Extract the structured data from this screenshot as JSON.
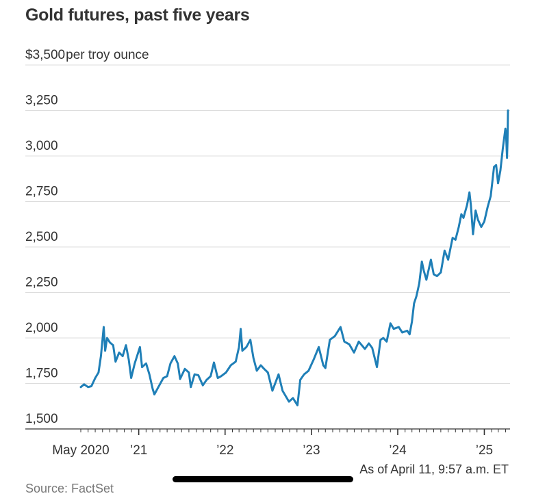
{
  "page": {
    "title": "Gold futures, past five years",
    "footnote": "As of April 11, 9:57 a.m. ET",
    "source": "Source: FactSet"
  },
  "colors": {
    "line": "#1f7fb7",
    "grid": "#dddddd",
    "axis": "#333333",
    "text": "#333333"
  },
  "chart_data": {
    "type": "line",
    "title": "Gold futures, past five years",
    "ylabel": "per troy ounce",
    "yunit_prefix": "$",
    "ylim": [
      1500,
      3500
    ],
    "yticks": [
      1500,
      1750,
      2000,
      2250,
      2500,
      2750,
      3000,
      3250,
      3500
    ],
    "ytick_labels": [
      "1,500",
      "1,750",
      "2,000",
      "2,250",
      "2,500",
      "2,750",
      "3,000",
      "3,250",
      "$3,500"
    ],
    "xlim": [
      "2020-05-01",
      "2025-04-11"
    ],
    "xticks": [
      "2020-05-01",
      "2021-01-01",
      "2022-01-01",
      "2023-01-01",
      "2024-01-01",
      "2025-01-01"
    ],
    "xtick_labels": [
      "May 2020",
      "’21",
      "’22",
      "’23",
      "’24",
      "’25"
    ],
    "grid": true,
    "series": [
      {
        "points": [
          [
            "2020-05-01",
            1730
          ],
          [
            "2020-05-15",
            1745
          ],
          [
            "2020-06-01",
            1730
          ],
          [
            "2020-06-15",
            1735
          ],
          [
            "2020-07-01",
            1780
          ],
          [
            "2020-07-15",
            1810
          ],
          [
            "2020-07-25",
            1900
          ],
          [
            "2020-08-06",
            2060
          ],
          [
            "2020-08-12",
            1930
          ],
          [
            "2020-08-20",
            2000
          ],
          [
            "2020-09-01",
            1975
          ],
          [
            "2020-09-15",
            1960
          ],
          [
            "2020-09-25",
            1870
          ],
          [
            "2020-10-10",
            1920
          ],
          [
            "2020-10-25",
            1900
          ],
          [
            "2020-11-08",
            1960
          ],
          [
            "2020-11-20",
            1880
          ],
          [
            "2020-11-30",
            1780
          ],
          [
            "2020-12-15",
            1860
          ],
          [
            "2021-01-06",
            1950
          ],
          [
            "2021-01-15",
            1840
          ],
          [
            "2021-02-01",
            1860
          ],
          [
            "2021-02-15",
            1800
          ],
          [
            "2021-03-01",
            1720
          ],
          [
            "2021-03-08",
            1690
          ],
          [
            "2021-03-25",
            1730
          ],
          [
            "2021-04-15",
            1780
          ],
          [
            "2021-05-01",
            1790
          ],
          [
            "2021-05-15",
            1860
          ],
          [
            "2021-06-01",
            1900
          ],
          [
            "2021-06-15",
            1860
          ],
          [
            "2021-06-25",
            1775
          ],
          [
            "2021-07-15",
            1830
          ],
          [
            "2021-08-01",
            1810
          ],
          [
            "2021-08-09",
            1730
          ],
          [
            "2021-08-25",
            1800
          ],
          [
            "2021-09-10",
            1795
          ],
          [
            "2021-09-29",
            1740
          ],
          [
            "2021-10-15",
            1770
          ],
          [
            "2021-11-01",
            1790
          ],
          [
            "2021-11-15",
            1865
          ],
          [
            "2021-12-01",
            1780
          ],
          [
            "2021-12-15",
            1790
          ],
          [
            "2022-01-05",
            1810
          ],
          [
            "2022-01-25",
            1850
          ],
          [
            "2022-02-15",
            1870
          ],
          [
            "2022-03-01",
            1950
          ],
          [
            "2022-03-08",
            2050
          ],
          [
            "2022-03-15",
            1930
          ],
          [
            "2022-04-01",
            1950
          ],
          [
            "2022-04-18",
            1990
          ],
          [
            "2022-05-01",
            1890
          ],
          [
            "2022-05-15",
            1820
          ],
          [
            "2022-06-01",
            1850
          ],
          [
            "2022-06-15",
            1830
          ],
          [
            "2022-07-01",
            1810
          ],
          [
            "2022-07-20",
            1710
          ],
          [
            "2022-08-15",
            1800
          ],
          [
            "2022-09-01",
            1710
          ],
          [
            "2022-09-28",
            1650
          ],
          [
            "2022-10-15",
            1670
          ],
          [
            "2022-11-03",
            1630
          ],
          [
            "2022-11-15",
            1770
          ],
          [
            "2022-12-01",
            1800
          ],
          [
            "2022-12-20",
            1820
          ],
          [
            "2023-01-10",
            1880
          ],
          [
            "2023-02-01",
            1950
          ],
          [
            "2023-02-20",
            1850
          ],
          [
            "2023-03-01",
            1835
          ],
          [
            "2023-03-20",
            1990
          ],
          [
            "2023-04-10",
            2010
          ],
          [
            "2023-05-04",
            2060
          ],
          [
            "2023-05-20",
            1980
          ],
          [
            "2023-06-10",
            1965
          ],
          [
            "2023-06-30",
            1920
          ],
          [
            "2023-07-20",
            1980
          ],
          [
            "2023-08-15",
            1940
          ],
          [
            "2023-09-01",
            1970
          ],
          [
            "2023-09-15",
            1945
          ],
          [
            "2023-10-05",
            1840
          ],
          [
            "2023-10-20",
            1990
          ],
          [
            "2023-11-01",
            2000
          ],
          [
            "2023-11-15",
            1980
          ],
          [
            "2023-12-01",
            2080
          ],
          [
            "2023-12-15",
            2050
          ],
          [
            "2024-01-05",
            2060
          ],
          [
            "2024-01-20",
            2030
          ],
          [
            "2024-02-10",
            2040
          ],
          [
            "2024-02-20",
            2020
          ],
          [
            "2024-03-01",
            2090
          ],
          [
            "2024-03-10",
            2190
          ],
          [
            "2024-03-20",
            2230
          ],
          [
            "2024-04-01",
            2300
          ],
          [
            "2024-04-12",
            2420
          ],
          [
            "2024-04-20",
            2370
          ],
          [
            "2024-05-01",
            2320
          ],
          [
            "2024-05-20",
            2430
          ],
          [
            "2024-06-01",
            2350
          ],
          [
            "2024-06-15",
            2340
          ],
          [
            "2024-07-01",
            2360
          ],
          [
            "2024-07-17",
            2480
          ],
          [
            "2024-08-01",
            2430
          ],
          [
            "2024-08-20",
            2550
          ],
          [
            "2024-09-01",
            2540
          ],
          [
            "2024-09-15",
            2610
          ],
          [
            "2024-09-26",
            2680
          ],
          [
            "2024-10-05",
            2660
          ],
          [
            "2024-10-20",
            2730
          ],
          [
            "2024-10-30",
            2800
          ],
          [
            "2024-11-05",
            2730
          ],
          [
            "2024-11-14",
            2570
          ],
          [
            "2024-11-25",
            2700
          ],
          [
            "2024-12-05",
            2650
          ],
          [
            "2024-12-19",
            2610
          ],
          [
            "2025-01-01",
            2640
          ],
          [
            "2025-01-15",
            2720
          ],
          [
            "2025-01-28",
            2780
          ],
          [
            "2025-02-11",
            2940
          ],
          [
            "2025-02-20",
            2950
          ],
          [
            "2025-02-28",
            2850
          ],
          [
            "2025-03-10",
            2920
          ],
          [
            "2025-03-20",
            3040
          ],
          [
            "2025-03-31",
            3150
          ],
          [
            "2025-04-03",
            3120
          ],
          [
            "2025-04-07",
            2990
          ],
          [
            "2025-04-09",
            3080
          ],
          [
            "2025-04-10",
            3170
          ],
          [
            "2025-04-11",
            3250
          ]
        ]
      }
    ]
  }
}
